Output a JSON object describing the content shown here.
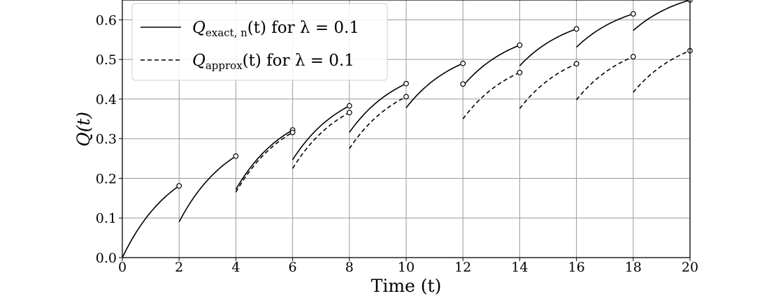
{
  "chart_data": {
    "type": "line",
    "xlabel": "Time (t)",
    "ylabel": "Q(t)",
    "xlim": [
      0,
      20
    ],
    "ylim": [
      0,
      0.65
    ],
    "xticks": [
      0,
      2,
      4,
      6,
      8,
      10,
      12,
      14,
      16,
      18,
      20
    ],
    "yticks": [
      0.0,
      0.1,
      0.2,
      0.3,
      0.4,
      0.5,
      0.6
    ],
    "grid": true,
    "legend_position": "top-left",
    "series": [
      {
        "name": "Q_exact,n(t) for λ = 0.1",
        "style": "solid",
        "segments": [
          {
            "x": [
              0,
              2
            ],
            "y_start": 0.0,
            "y_end": 0.181
          },
          {
            "x": [
              2,
              4
            ],
            "y_start": 0.09,
            "y_end": 0.256
          },
          {
            "x": [
              4,
              6
            ],
            "y_start": 0.172,
            "y_end": 0.322
          },
          {
            "x": [
              6,
              8
            ],
            "y_start": 0.247,
            "y_end": 0.383
          },
          {
            "x": [
              8,
              10
            ],
            "y_start": 0.316,
            "y_end": 0.439
          },
          {
            "x": [
              10,
              12
            ],
            "y_start": 0.378,
            "y_end": 0.49
          },
          {
            "x": [
              12,
              14
            ],
            "y_start": 0.433,
            "y_end": 0.536
          },
          {
            "x": [
              14,
              16
            ],
            "y_start": 0.484,
            "y_end": 0.577
          },
          {
            "x": [
              16,
              18
            ],
            "y_start": 0.531,
            "y_end": 0.615
          },
          {
            "x": [
              18,
              20
            ],
            "y_start": 0.573,
            "y_end": 0.65
          }
        ]
      },
      {
        "name": "Q_approx(t) for λ = 0.1",
        "style": "dashed",
        "segments": [
          {
            "x": [
              4,
              6
            ],
            "y_start": 0.165,
            "y_end": 0.316
          },
          {
            "x": [
              6,
              8
            ],
            "y_start": 0.225,
            "y_end": 0.366
          },
          {
            "x": [
              8,
              10
            ],
            "y_start": 0.275,
            "y_end": 0.406
          },
          {
            "x": [
              12,
              14
            ],
            "y_start": 0.35,
            "y_end": 0.467
          },
          {
            "x": [
              14,
              16
            ],
            "y_start": 0.376,
            "y_end": 0.489
          },
          {
            "x": [
              16,
              18
            ],
            "y_start": 0.398,
            "y_end": 0.507
          },
          {
            "x": [
              18,
              20
            ],
            "y_start": 0.417,
            "y_end": 0.522
          }
        ]
      }
    ],
    "markers": [
      {
        "x": 2,
        "y": 0.181
      },
      {
        "x": 4,
        "y": 0.256
      },
      {
        "x": 6,
        "y": 0.322
      },
      {
        "x": 6,
        "y": 0.316
      },
      {
        "x": 8,
        "y": 0.383
      },
      {
        "x": 8,
        "y": 0.366
      },
      {
        "x": 10,
        "y": 0.439
      },
      {
        "x": 10,
        "y": 0.406
      },
      {
        "x": 12,
        "y": 0.49
      },
      {
        "x": 12,
        "y": 0.438
      },
      {
        "x": 14,
        "y": 0.536
      },
      {
        "x": 14,
        "y": 0.467
      },
      {
        "x": 16,
        "y": 0.577
      },
      {
        "x": 16,
        "y": 0.489
      },
      {
        "x": 18,
        "y": 0.615
      },
      {
        "x": 18,
        "y": 0.507
      },
      {
        "x": 20,
        "y": 0.65
      },
      {
        "x": 20,
        "y": 0.522
      }
    ],
    "legend": {
      "exact": {
        "q": "Q",
        "sub": "exact, n",
        "tail": "(t) for λ = 0.1"
      },
      "approx": {
        "q": "Q",
        "sub": "approx",
        "tail": "(t) for λ = 0.1"
      }
    }
  }
}
